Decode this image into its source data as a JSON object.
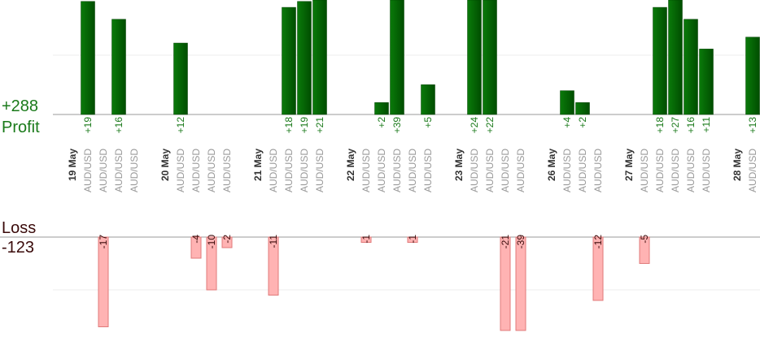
{
  "summary": {
    "profit_total": "+288",
    "profit_label": "Profit",
    "loss_label": "Loss",
    "loss_total": "-123"
  },
  "days": [
    {
      "date": "19 May",
      "trades": [
        {
          "pair": "AUD/USD",
          "pnl": 19,
          "pnl_label": "+19"
        },
        {
          "pair": "AUD/USD",
          "pnl": -17,
          "pnl_label": "-17"
        },
        {
          "pair": "AUD/USD",
          "pnl": 16,
          "pnl_label": "+16"
        },
        {
          "pair": "AUD/USD",
          "pnl": null,
          "pnl_label": null
        }
      ]
    },
    {
      "date": "20 May",
      "trades": [
        {
          "pair": "AUD/USD",
          "pnl": 12,
          "pnl_label": "+12"
        },
        {
          "pair": "AUD/USD",
          "pnl": -4,
          "pnl_label": "-4"
        },
        {
          "pair": "AUD/USD",
          "pnl": -10,
          "pnl_label": "-10"
        },
        {
          "pair": "AUD/USD",
          "pnl": -2,
          "pnl_label": "-2"
        }
      ]
    },
    {
      "date": "21 May",
      "trades": [
        {
          "pair": "AUD/USD",
          "pnl": -11,
          "pnl_label": "-11"
        },
        {
          "pair": "AUD/USD",
          "pnl": 18,
          "pnl_label": "+18"
        },
        {
          "pair": "AUD/USD",
          "pnl": 19,
          "pnl_label": "+19"
        },
        {
          "pair": "AUD/USD",
          "pnl": 21,
          "pnl_label": "+21"
        }
      ]
    },
    {
      "date": "22 May",
      "trades": [
        {
          "pair": "AUD/USD",
          "pnl": -1,
          "pnl_label": "-1"
        },
        {
          "pair": "AUD/USD",
          "pnl": 2,
          "pnl_label": "+2"
        },
        {
          "pair": "AUD/USD",
          "pnl": 39,
          "pnl_label": "+39"
        },
        {
          "pair": "AUD/USD",
          "pnl": -1,
          "pnl_label": "-1"
        },
        {
          "pair": "AUD/USD",
          "pnl": 5,
          "pnl_label": "+5"
        }
      ]
    },
    {
      "date": "23 May",
      "trades": [
        {
          "pair": "AUD/USD",
          "pnl": 24,
          "pnl_label": "+24"
        },
        {
          "pair": "AUD/USD",
          "pnl": 22,
          "pnl_label": "+22"
        },
        {
          "pair": "AUD/USD",
          "pnl": -21,
          "pnl_label": "-21"
        },
        {
          "pair": "AUD/USD",
          "pnl": -39,
          "pnl_label": "-39"
        }
      ]
    },
    {
      "date": "26 May",
      "trades": [
        {
          "pair": "AUD/USD",
          "pnl": 4,
          "pnl_label": "+4"
        },
        {
          "pair": "AUD/USD",
          "pnl": 2,
          "pnl_label": "+2"
        },
        {
          "pair": "AUD/USD",
          "pnl": -12,
          "pnl_label": "-12"
        }
      ]
    },
    {
      "date": "27 May",
      "trades": [
        {
          "pair": "AUD/USD",
          "pnl": -5,
          "pnl_label": "-5"
        },
        {
          "pair": "AUD/USD",
          "pnl": 18,
          "pnl_label": "+18"
        },
        {
          "pair": "AUD/USD",
          "pnl": 27,
          "pnl_label": "+27"
        },
        {
          "pair": "AUD/USD",
          "pnl": 16,
          "pnl_label": "+16"
        },
        {
          "pair": "AUD/USD",
          "pnl": 11,
          "pnl_label": "+11"
        }
      ]
    },
    {
      "date": "28 May",
      "trades": [
        {
          "pair": "AUD/USD",
          "pnl": 13,
          "pnl_label": "+13"
        }
      ]
    }
  ]
}
